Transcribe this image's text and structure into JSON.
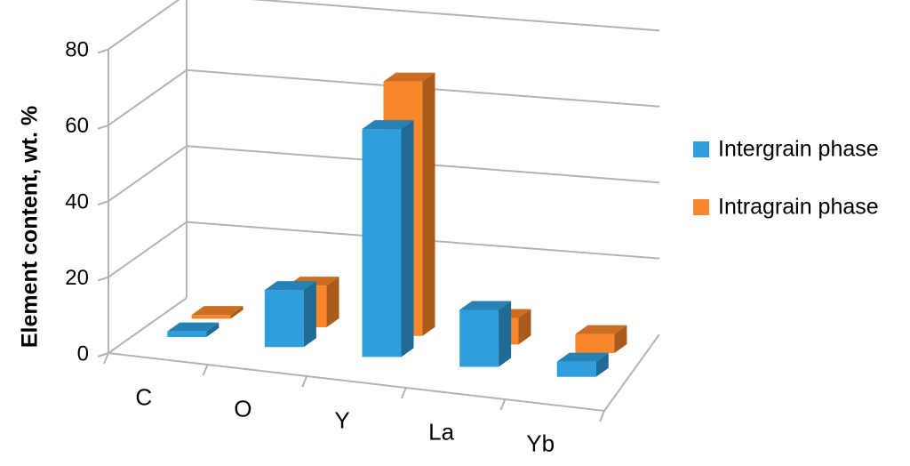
{
  "chart_data": {
    "type": "bar",
    "projection": "3d",
    "categories": [
      "C",
      "O",
      "Y",
      "La",
      "Yb"
    ],
    "series": [
      {
        "name": "Intergrain phase",
        "values": [
          1.5,
          15,
          60,
          15,
          4
        ]
      },
      {
        "name": "Intragrain phase",
        "values": [
          1.0,
          11,
          67,
          7,
          5
        ]
      }
    ],
    "ylabel": "Element content, wt.  %",
    "xlabel": "",
    "yticks": [
      0,
      20,
      40,
      60,
      80
    ],
    "ylim": [
      0,
      80
    ],
    "grid": true,
    "legend_position": "right",
    "colors": {
      "Intergrain phase": "#2e9edc",
      "Intragrain phase": "#f8862a",
      "grid": "#b3b3b3"
    }
  }
}
